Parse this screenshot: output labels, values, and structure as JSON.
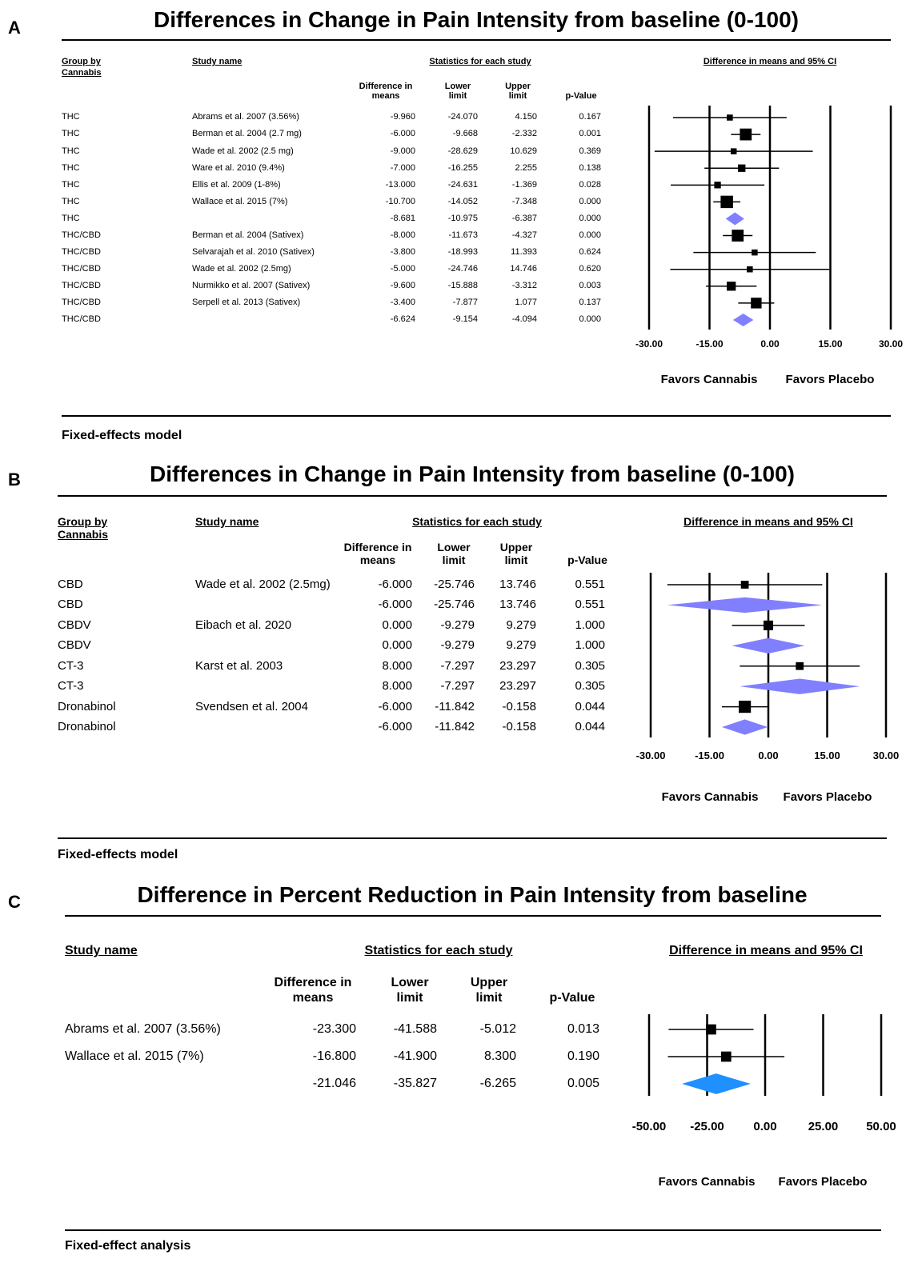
{
  "chart_data": [
    {
      "type": "forest",
      "panel_label": "A",
      "title": "Differences in Change in Pain Intensity from baseline (0-100)",
      "headers": {
        "group": "Group by Cannabis",
        "study": "Study name",
        "statistics": "Statistics for each study",
        "plot": "Difference in means and 95% CI"
      },
      "groups": [
        "THC",
        "THC",
        "THC",
        "THC",
        "THC",
        "THC",
        "THC",
        "THC/CBD",
        "THC/CBD",
        "THC/CBD",
        "THC/CBD",
        "THC/CBD",
        "THC/CBD"
      ],
      "categories": [
        "Abrams et al. 2007 (3.56%)",
        "Berman et al. 2004 (2.7 mg)",
        "Wade et al. 2002 (2.5 mg)",
        "Ware et al. 2010 (9.4%)",
        "Ellis et al. 2009 (1-8%)",
        "Wallace et al. 2015 (7%)",
        null,
        "Berman et al. 2004 (Sativex)",
        "Selvarajah et al. 2010 (Sativex)",
        "Wade et al. 2002 (2.5mg)",
        "Nurmikko et al. 2007 (Sativex)",
        "Serpell et al. 2013 (Sativex)",
        null
      ],
      "series": [
        {
          "name": "Difference in means",
          "values": [
            -9.96,
            -6,
            -9,
            -7,
            -13,
            -10.7,
            -8.681,
            -8,
            -3.8,
            -5,
            -9.6,
            -3.4,
            -6.624
          ],
          "value_labels": [
            "-9.960",
            "-6.000",
            "-9.000",
            "-7.000",
            "-13.000",
            "-10.700",
            "-8.681",
            "-8.000",
            "-3.800",
            "-5.000",
            "-9.600",
            "-3.400",
            "-6.624"
          ]
        },
        {
          "name": "Lower limit",
          "values": [
            -24.07,
            -9.668,
            -28.629,
            -16.255,
            -24.631,
            -14.052,
            -10.975,
            -11.673,
            -18.993,
            -24.746,
            -15.888,
            -7.877,
            -9.154
          ],
          "value_labels": [
            "-24.070",
            "-9.668",
            "-28.629",
            "-16.255",
            "-24.631",
            "-14.052",
            "-10.975",
            "-11.673",
            "-18.993",
            "-24.746",
            "-15.888",
            "-7.877",
            "-9.154"
          ]
        },
        {
          "name": "Upper limit",
          "values": [
            4.15,
            -2.332,
            10.629,
            2.255,
            -1.369,
            -7.348,
            -6.387,
            -4.327,
            11.393,
            14.746,
            -3.312,
            1.077,
            -4.094
          ],
          "value_labels": [
            "4.150",
            "-2.332",
            "10.629",
            "2.255",
            "-1.369",
            "-7.348",
            "-6.387",
            "-4.327",
            "11.393",
            "14.746",
            "-3.312",
            "1.077",
            "-4.094"
          ]
        },
        {
          "name": "p-Value",
          "values": [
            0.167,
            0.001,
            0.369,
            0.138,
            0.028,
            0,
            0,
            0,
            0.624,
            0.62,
            0.003,
            0.137,
            0
          ],
          "value_labels": [
            "0.167",
            "0.001",
            "0.369",
            "0.138",
            "0.028",
            "0.000",
            "0.000",
            "0.000",
            "0.624",
            "0.620",
            "0.003",
            "0.137",
            "0.000"
          ]
        }
      ],
      "marker_color": "#000000",
      "pooled_color": "#8080ff",
      "xlim": [
        -30,
        30
      ],
      "xticks": [
        {
          "value": -30,
          "label": "-30.00"
        },
        {
          "value": -15,
          "label": "-15.00"
        },
        {
          "value": 0,
          "label": "0.00"
        },
        {
          "value": 15,
          "label": "15.00"
        },
        {
          "value": 30,
          "label": "30.00"
        }
      ],
      "direction_labels": [
        "Favors Cannabis",
        "Favors Placebo"
      ],
      "footnote": "Fixed-effects model"
    },
    {
      "type": "forest",
      "panel_label": "B",
      "title": "Differences in Change in Pain Intensity from baseline (0-100)",
      "headers": {
        "group": "Group by Cannabis",
        "study": "Study name",
        "statistics": "Statistics for each study",
        "plot": "Difference in means and 95% CI"
      },
      "groups": [
        "CBD",
        "CBD",
        "CBDV",
        "CBDV",
        "CT-3",
        "CT-3",
        "Dronabinol",
        "Dronabinol"
      ],
      "categories": [
        "Wade et al. 2002 (2.5mg)",
        null,
        "Eibach et al. 2020",
        null,
        "Karst et al. 2003",
        null,
        "Svendsen et al. 2004",
        null
      ],
      "series": [
        {
          "name": "Difference in means",
          "values": [
            -6,
            -6,
            0,
            0,
            8,
            8,
            -6,
            -6
          ],
          "value_labels": [
            "-6.000",
            "-6.000",
            "0.000",
            "0.000",
            "8.000",
            "8.000",
            "-6.000",
            "-6.000"
          ]
        },
        {
          "name": "Lower limit",
          "values": [
            -25.746,
            -25.746,
            -9.279,
            -9.279,
            -7.297,
            -7.297,
            -11.842,
            -11.842
          ],
          "value_labels": [
            "-25.746",
            "-25.746",
            "-9.279",
            "-9.279",
            "-7.297",
            "-7.297",
            "-11.842",
            "-11.842"
          ]
        },
        {
          "name": "Upper limit",
          "values": [
            13.746,
            13.746,
            9.279,
            9.279,
            23.297,
            23.297,
            -0.158,
            -0.158
          ],
          "value_labels": [
            "13.746",
            "13.746",
            "9.279",
            "9.279",
            "23.297",
            "23.297",
            "-0.158",
            "-0.158"
          ]
        },
        {
          "name": "p-Value",
          "values": [
            0.551,
            0.551,
            1,
            1,
            0.305,
            0.305,
            0.044,
            0.044
          ],
          "value_labels": [
            "0.551",
            "0.551",
            "1.000",
            "1.000",
            "0.305",
            "0.305",
            "0.044",
            "0.044"
          ]
        }
      ],
      "marker_color": "#000000",
      "pooled_color": "#8080ff",
      "xlim": [
        -30,
        30
      ],
      "xticks": [
        {
          "value": -30,
          "label": "-30.00"
        },
        {
          "value": -15,
          "label": "-15.00"
        },
        {
          "value": 0,
          "label": "0.00"
        },
        {
          "value": 15,
          "label": "15.00"
        },
        {
          "value": 30,
          "label": "30.00"
        }
      ],
      "direction_labels": [
        "Favors Cannabis",
        "Favors Placebo"
      ],
      "footnote": "Fixed-effects model"
    },
    {
      "type": "forest",
      "panel_label": "C",
      "title": "Difference in Percent Reduction in Pain Intensity from baseline",
      "headers": {
        "study": "Study name",
        "statistics": "Statistics for each study",
        "plot": "Difference in means and 95% CI"
      },
      "categories": [
        "Abrams et al. 2007 (3.56%)",
        "Wallace et al. 2015 (7%)",
        null
      ],
      "series": [
        {
          "name": "Difference in means",
          "values": [
            -23.3,
            -16.8,
            -21.046
          ],
          "value_labels": [
            "-23.300",
            "-16.800",
            "-21.046"
          ]
        },
        {
          "name": "Lower limit",
          "values": [
            -41.588,
            -41.9,
            -35.827
          ],
          "value_labels": [
            "-41.588",
            "-41.900",
            "-35.827"
          ]
        },
        {
          "name": "Upper limit",
          "values": [
            -5.012,
            8.3,
            -6.265
          ],
          "value_labels": [
            "-5.012",
            "8.300",
            "-6.265"
          ]
        },
        {
          "name": "p-Value",
          "values": [
            0.013,
            0.19,
            0.005
          ],
          "value_labels": [
            "0.013",
            "0.190",
            "0.005"
          ]
        }
      ],
      "marker_color": "#000000",
      "pooled_color": "#1e90ff",
      "xlim": [
        -50,
        50
      ],
      "xticks": [
        {
          "value": -50,
          "label": "-50.00"
        },
        {
          "value": -25,
          "label": "-25.00"
        },
        {
          "value": 0,
          "label": "0.00"
        },
        {
          "value": 25,
          "label": "25.00"
        },
        {
          "value": 50,
          "label": "50.00"
        }
      ],
      "direction_labels": [
        "Favors Cannabis",
        "Favors Placebo"
      ],
      "footnote": "Fixed-effect analysis"
    }
  ]
}
